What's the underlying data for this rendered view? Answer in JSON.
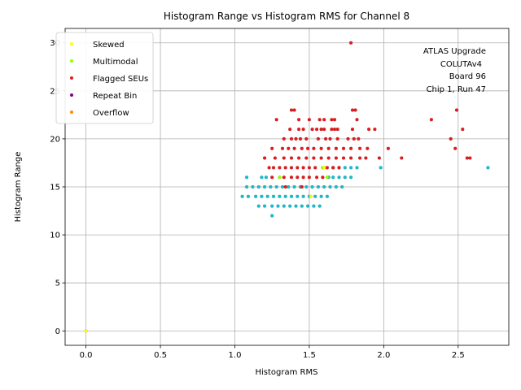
{
  "chart_data": {
    "type": "scatter",
    "title": "Histogram Range vs Histogram RMS for Channel 8",
    "xlabel": "Histogram RMS",
    "ylabel": "Histogram Range",
    "xlim": [
      -0.14,
      2.84
    ],
    "ylim": [
      -1.5,
      31.5
    ],
    "xticks": [
      0.0,
      0.5,
      1.0,
      1.5,
      2.0,
      2.5
    ],
    "xtick_labels": [
      "0.0",
      "0.5",
      "1.0",
      "1.5",
      "2.0",
      "2.5"
    ],
    "yticks": [
      0,
      5,
      10,
      15,
      20,
      25,
      30
    ],
    "ytick_labels": [
      "0",
      "5",
      "10",
      "15",
      "20",
      "25",
      "30"
    ],
    "grid": true,
    "legend_position": "top-left",
    "annotation_lines": [
      "ATLAS Upgrade",
      "COLUTAv4",
      "Board 96",
      "Chip 1, Run 47"
    ],
    "series": [
      {
        "name": "Skewed",
        "color": "#ffff00",
        "points": [
          [
            0.0,
            0.0
          ],
          [
            1.51,
            14.0
          ],
          [
            1.6,
            17.0
          ]
        ]
      },
      {
        "name": "Multimodal",
        "color": "#99ff00",
        "points": [
          [
            1.62,
            16.0
          ],
          [
            1.59,
            17.0
          ],
          [
            1.3,
            16.0
          ]
        ]
      },
      {
        "name": "Flagged SEUs",
        "color": "#e41a1c",
        "points": [
          [
            1.78,
            30.0
          ],
          [
            2.49,
            23.0
          ],
          [
            1.79,
            23.0
          ],
          [
            1.38,
            23.0
          ],
          [
            1.4,
            23.0
          ],
          [
            1.81,
            23.0
          ],
          [
            2.32,
            22.0
          ],
          [
            1.28,
            22.0
          ],
          [
            1.43,
            22.0
          ],
          [
            1.5,
            22.0
          ],
          [
            1.57,
            22.0
          ],
          [
            1.6,
            22.0
          ],
          [
            1.65,
            22.0
          ],
          [
            1.67,
            22.0
          ],
          [
            1.82,
            22.0
          ],
          [
            2.53,
            21.0
          ],
          [
            1.37,
            21.0
          ],
          [
            1.43,
            21.0
          ],
          [
            1.46,
            21.0
          ],
          [
            1.52,
            21.0
          ],
          [
            1.55,
            21.0
          ],
          [
            1.58,
            21.0
          ],
          [
            1.6,
            21.0
          ],
          [
            1.65,
            21.0
          ],
          [
            1.67,
            21.0
          ],
          [
            1.69,
            21.0
          ],
          [
            1.79,
            21.0
          ],
          [
            1.9,
            21.0
          ],
          [
            1.94,
            21.0
          ],
          [
            2.45,
            20.0
          ],
          [
            1.33,
            20.0
          ],
          [
            1.38,
            20.0
          ],
          [
            1.41,
            20.0
          ],
          [
            1.44,
            20.0
          ],
          [
            1.48,
            20.0
          ],
          [
            1.56,
            20.0
          ],
          [
            1.61,
            20.0
          ],
          [
            1.64,
            20.0
          ],
          [
            1.69,
            20.0
          ],
          [
            1.76,
            20.0
          ],
          [
            1.8,
            20.0
          ],
          [
            1.83,
            20.0
          ],
          [
            2.48,
            19.0
          ],
          [
            2.03,
            19.0
          ],
          [
            1.25,
            19.0
          ],
          [
            1.32,
            19.0
          ],
          [
            1.36,
            19.0
          ],
          [
            1.4,
            19.0
          ],
          [
            1.45,
            19.0
          ],
          [
            1.49,
            19.0
          ],
          [
            1.53,
            19.0
          ],
          [
            1.58,
            19.0
          ],
          [
            1.63,
            19.0
          ],
          [
            1.68,
            19.0
          ],
          [
            1.73,
            19.0
          ],
          [
            1.78,
            19.0
          ],
          [
            1.84,
            19.0
          ],
          [
            1.89,
            19.0
          ],
          [
            2.56,
            18.0
          ],
          [
            2.58,
            18.0
          ],
          [
            2.12,
            18.0
          ],
          [
            1.97,
            18.0
          ],
          [
            1.2,
            18.0
          ],
          [
            1.27,
            18.0
          ],
          [
            1.33,
            18.0
          ],
          [
            1.38,
            18.0
          ],
          [
            1.43,
            18.0
          ],
          [
            1.48,
            18.0
          ],
          [
            1.53,
            18.0
          ],
          [
            1.58,
            18.0
          ],
          [
            1.63,
            18.0
          ],
          [
            1.68,
            18.0
          ],
          [
            1.73,
            18.0
          ],
          [
            1.78,
            18.0
          ],
          [
            1.84,
            18.0
          ],
          [
            1.88,
            18.0
          ],
          [
            1.23,
            17.0
          ],
          [
            1.26,
            17.0
          ],
          [
            1.3,
            17.0
          ],
          [
            1.34,
            17.0
          ],
          [
            1.38,
            17.0
          ],
          [
            1.42,
            17.0
          ],
          [
            1.46,
            17.0
          ],
          [
            1.5,
            17.0
          ],
          [
            1.54,
            17.0
          ],
          [
            1.62,
            17.0
          ],
          [
            1.66,
            17.0
          ],
          [
            1.7,
            17.0
          ],
          [
            1.25,
            16.0
          ],
          [
            1.33,
            16.0
          ],
          [
            1.38,
            16.0
          ],
          [
            1.42,
            16.0
          ],
          [
            1.46,
            16.0
          ],
          [
            1.5,
            16.0
          ],
          [
            1.55,
            16.0
          ],
          [
            1.59,
            16.0
          ],
          [
            1.34,
            15.0
          ],
          [
            1.45,
            15.0
          ]
        ]
      },
      {
        "name": "Repeat Bin",
        "color": "#800080",
        "points": []
      },
      {
        "name": "Overflow",
        "color": "#ff8c00",
        "points": []
      },
      {
        "name": "",
        "color": "#17becf",
        "points": [
          [
            2.7,
            17.0
          ],
          [
            1.98,
            17.0
          ],
          [
            1.66,
            17.0
          ],
          [
            1.7,
            17.0
          ],
          [
            1.74,
            17.0
          ],
          [
            1.78,
            17.0
          ],
          [
            1.82,
            17.0
          ],
          [
            1.08,
            16.0
          ],
          [
            1.18,
            16.0
          ],
          [
            1.21,
            16.0
          ],
          [
            1.63,
            16.0
          ],
          [
            1.66,
            16.0
          ],
          [
            1.7,
            16.0
          ],
          [
            1.74,
            16.0
          ],
          [
            1.78,
            16.0
          ],
          [
            1.08,
            15.0
          ],
          [
            1.12,
            15.0
          ],
          [
            1.16,
            15.0
          ],
          [
            1.2,
            15.0
          ],
          [
            1.24,
            15.0
          ],
          [
            1.28,
            15.0
          ],
          [
            1.32,
            15.0
          ],
          [
            1.36,
            15.0
          ],
          [
            1.4,
            15.0
          ],
          [
            1.44,
            15.0
          ],
          [
            1.48,
            15.0
          ],
          [
            1.52,
            15.0
          ],
          [
            1.56,
            15.0
          ],
          [
            1.6,
            15.0
          ],
          [
            1.64,
            15.0
          ],
          [
            1.68,
            15.0
          ],
          [
            1.72,
            15.0
          ],
          [
            1.05,
            14.0
          ],
          [
            1.09,
            14.0
          ],
          [
            1.14,
            14.0
          ],
          [
            1.18,
            14.0
          ],
          [
            1.22,
            14.0
          ],
          [
            1.26,
            14.0
          ],
          [
            1.3,
            14.0
          ],
          [
            1.34,
            14.0
          ],
          [
            1.38,
            14.0
          ],
          [
            1.42,
            14.0
          ],
          [
            1.46,
            14.0
          ],
          [
            1.5,
            14.0
          ],
          [
            1.54,
            14.0
          ],
          [
            1.58,
            14.0
          ],
          [
            1.62,
            14.0
          ],
          [
            1.16,
            13.0
          ],
          [
            1.2,
            13.0
          ],
          [
            1.25,
            13.0
          ],
          [
            1.29,
            13.0
          ],
          [
            1.33,
            13.0
          ],
          [
            1.37,
            13.0
          ],
          [
            1.41,
            13.0
          ],
          [
            1.45,
            13.0
          ],
          [
            1.49,
            13.0
          ],
          [
            1.53,
            13.0
          ],
          [
            1.57,
            13.0
          ],
          [
            1.25,
            12.0
          ]
        ]
      }
    ]
  }
}
